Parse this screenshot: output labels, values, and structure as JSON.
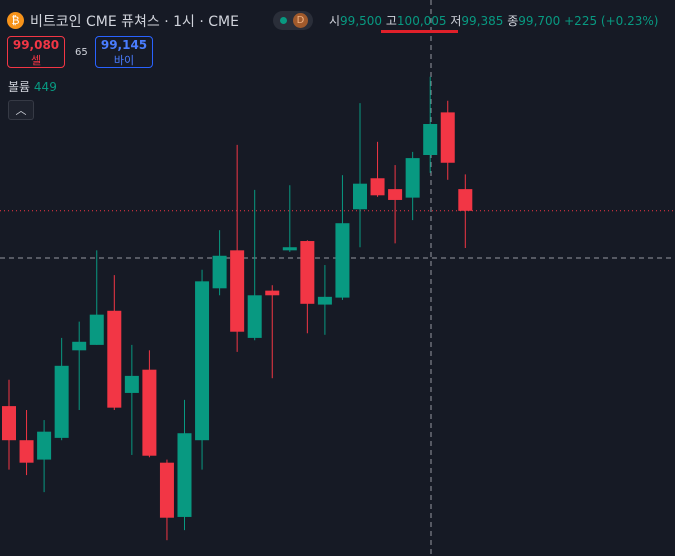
{
  "header": {
    "symbol": "비트코인 CME 퓨쳐스 · 1시 · CME",
    "badge": "D",
    "ohlc": {
      "open_label": "시",
      "open": "99,500",
      "high_label": "고",
      "high": "100,005",
      "low_label": "저",
      "low": "99,385",
      "close_label": "종",
      "close": "99,700",
      "change": "+225 (+0.23%)"
    },
    "sell": {
      "price": "99,080",
      "label": "셀"
    },
    "spread": "65",
    "buy": {
      "price": "99,145",
      "label": "바이"
    },
    "volume": {
      "label": "볼륨",
      "value": "449"
    }
  },
  "chart_data": {
    "type": "candlestick",
    "up_color": "#089981",
    "down_color": "#f23645",
    "ylim": [
      96913,
      100500
    ],
    "last_price": 99140,
    "last_price_color": "#f23645",
    "open": [
      97880,
      97660,
      97535,
      97675,
      98240,
      98275,
      98495,
      97965,
      98115,
      97515,
      97165,
      97660,
      98640,
      98885,
      98320,
      98625,
      98885,
      98945,
      98535,
      98580,
      99150,
      99350,
      99280,
      99225,
      99500,
      99775,
      99280
    ],
    "high": [
      98050,
      97855,
      97790,
      98320,
      98425,
      98885,
      98725,
      98275,
      98240,
      97535,
      97920,
      98760,
      99015,
      99565,
      99275,
      98660,
      99305,
      98950,
      98790,
      99370,
      99835,
      99585,
      99435,
      99520,
      100005,
      99850,
      99375
    ],
    "low": [
      97470,
      97435,
      97325,
      97660,
      97855,
      98275,
      97855,
      97565,
      97550,
      97015,
      97080,
      97470,
      98595,
      98230,
      98305,
      98060,
      98875,
      98350,
      98340,
      98565,
      98905,
      99230,
      98930,
      99080,
      99385,
      99340,
      98900
    ],
    "close": [
      97660,
      97515,
      97715,
      98140,
      98295,
      98470,
      97870,
      98075,
      97560,
      97160,
      97705,
      98685,
      98850,
      98360,
      98595,
      98595,
      98905,
      98540,
      98585,
      99060,
      99315,
      99240,
      99210,
      99480,
      99700,
      99450,
      99140
    ]
  }
}
